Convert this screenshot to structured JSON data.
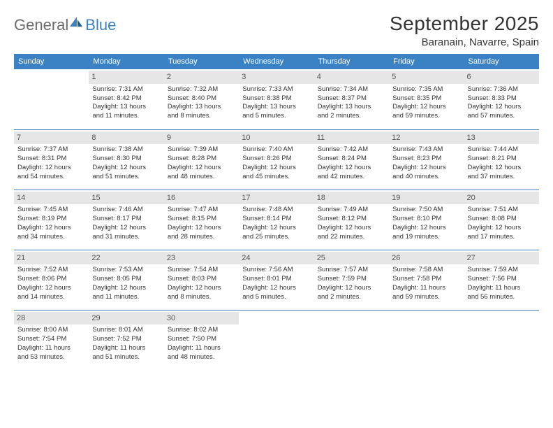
{
  "logo": {
    "word1": "General",
    "word2": "Blue"
  },
  "title": "September 2025",
  "location": "Baranain, Navarre, Spain",
  "day_headers": [
    "Sunday",
    "Monday",
    "Tuesday",
    "Wednesday",
    "Thursday",
    "Friday",
    "Saturday"
  ],
  "colors": {
    "header_bg": "#3b82c4",
    "header_fg": "#ffffff",
    "daynum_bg": "#e6e6e6",
    "border": "#3b82c4",
    "text": "#333333",
    "logo_gray": "#6b6b6b",
    "logo_blue": "#3b82c4"
  },
  "weeks": [
    [
      {
        "n": "",
        "lines": []
      },
      {
        "n": "1",
        "lines": [
          "Sunrise: 7:31 AM",
          "Sunset: 8:42 PM",
          "Daylight: 13 hours",
          "and 11 minutes."
        ]
      },
      {
        "n": "2",
        "lines": [
          "Sunrise: 7:32 AM",
          "Sunset: 8:40 PM",
          "Daylight: 13 hours",
          "and 8 minutes."
        ]
      },
      {
        "n": "3",
        "lines": [
          "Sunrise: 7:33 AM",
          "Sunset: 8:38 PM",
          "Daylight: 13 hours",
          "and 5 minutes."
        ]
      },
      {
        "n": "4",
        "lines": [
          "Sunrise: 7:34 AM",
          "Sunset: 8:37 PM",
          "Daylight: 13 hours",
          "and 2 minutes."
        ]
      },
      {
        "n": "5",
        "lines": [
          "Sunrise: 7:35 AM",
          "Sunset: 8:35 PM",
          "Daylight: 12 hours",
          "and 59 minutes."
        ]
      },
      {
        "n": "6",
        "lines": [
          "Sunrise: 7:36 AM",
          "Sunset: 8:33 PM",
          "Daylight: 12 hours",
          "and 57 minutes."
        ]
      }
    ],
    [
      {
        "n": "7",
        "lines": [
          "Sunrise: 7:37 AM",
          "Sunset: 8:31 PM",
          "Daylight: 12 hours",
          "and 54 minutes."
        ]
      },
      {
        "n": "8",
        "lines": [
          "Sunrise: 7:38 AM",
          "Sunset: 8:30 PM",
          "Daylight: 12 hours",
          "and 51 minutes."
        ]
      },
      {
        "n": "9",
        "lines": [
          "Sunrise: 7:39 AM",
          "Sunset: 8:28 PM",
          "Daylight: 12 hours",
          "and 48 minutes."
        ]
      },
      {
        "n": "10",
        "lines": [
          "Sunrise: 7:40 AM",
          "Sunset: 8:26 PM",
          "Daylight: 12 hours",
          "and 45 minutes."
        ]
      },
      {
        "n": "11",
        "lines": [
          "Sunrise: 7:42 AM",
          "Sunset: 8:24 PM",
          "Daylight: 12 hours",
          "and 42 minutes."
        ]
      },
      {
        "n": "12",
        "lines": [
          "Sunrise: 7:43 AM",
          "Sunset: 8:23 PM",
          "Daylight: 12 hours",
          "and 40 minutes."
        ]
      },
      {
        "n": "13",
        "lines": [
          "Sunrise: 7:44 AM",
          "Sunset: 8:21 PM",
          "Daylight: 12 hours",
          "and 37 minutes."
        ]
      }
    ],
    [
      {
        "n": "14",
        "lines": [
          "Sunrise: 7:45 AM",
          "Sunset: 8:19 PM",
          "Daylight: 12 hours",
          "and 34 minutes."
        ]
      },
      {
        "n": "15",
        "lines": [
          "Sunrise: 7:46 AM",
          "Sunset: 8:17 PM",
          "Daylight: 12 hours",
          "and 31 minutes."
        ]
      },
      {
        "n": "16",
        "lines": [
          "Sunrise: 7:47 AM",
          "Sunset: 8:15 PM",
          "Daylight: 12 hours",
          "and 28 minutes."
        ]
      },
      {
        "n": "17",
        "lines": [
          "Sunrise: 7:48 AM",
          "Sunset: 8:14 PM",
          "Daylight: 12 hours",
          "and 25 minutes."
        ]
      },
      {
        "n": "18",
        "lines": [
          "Sunrise: 7:49 AM",
          "Sunset: 8:12 PM",
          "Daylight: 12 hours",
          "and 22 minutes."
        ]
      },
      {
        "n": "19",
        "lines": [
          "Sunrise: 7:50 AM",
          "Sunset: 8:10 PM",
          "Daylight: 12 hours",
          "and 19 minutes."
        ]
      },
      {
        "n": "20",
        "lines": [
          "Sunrise: 7:51 AM",
          "Sunset: 8:08 PM",
          "Daylight: 12 hours",
          "and 17 minutes."
        ]
      }
    ],
    [
      {
        "n": "21",
        "lines": [
          "Sunrise: 7:52 AM",
          "Sunset: 8:06 PM",
          "Daylight: 12 hours",
          "and 14 minutes."
        ]
      },
      {
        "n": "22",
        "lines": [
          "Sunrise: 7:53 AM",
          "Sunset: 8:05 PM",
          "Daylight: 12 hours",
          "and 11 minutes."
        ]
      },
      {
        "n": "23",
        "lines": [
          "Sunrise: 7:54 AM",
          "Sunset: 8:03 PM",
          "Daylight: 12 hours",
          "and 8 minutes."
        ]
      },
      {
        "n": "24",
        "lines": [
          "Sunrise: 7:56 AM",
          "Sunset: 8:01 PM",
          "Daylight: 12 hours",
          "and 5 minutes."
        ]
      },
      {
        "n": "25",
        "lines": [
          "Sunrise: 7:57 AM",
          "Sunset: 7:59 PM",
          "Daylight: 12 hours",
          "and 2 minutes."
        ]
      },
      {
        "n": "26",
        "lines": [
          "Sunrise: 7:58 AM",
          "Sunset: 7:58 PM",
          "Daylight: 11 hours",
          "and 59 minutes."
        ]
      },
      {
        "n": "27",
        "lines": [
          "Sunrise: 7:59 AM",
          "Sunset: 7:56 PM",
          "Daylight: 11 hours",
          "and 56 minutes."
        ]
      }
    ],
    [
      {
        "n": "28",
        "lines": [
          "Sunrise: 8:00 AM",
          "Sunset: 7:54 PM",
          "Daylight: 11 hours",
          "and 53 minutes."
        ]
      },
      {
        "n": "29",
        "lines": [
          "Sunrise: 8:01 AM",
          "Sunset: 7:52 PM",
          "Daylight: 11 hours",
          "and 51 minutes."
        ]
      },
      {
        "n": "30",
        "lines": [
          "Sunrise: 8:02 AM",
          "Sunset: 7:50 PM",
          "Daylight: 11 hours",
          "and 48 minutes."
        ]
      },
      {
        "n": "",
        "lines": []
      },
      {
        "n": "",
        "lines": []
      },
      {
        "n": "",
        "lines": []
      },
      {
        "n": "",
        "lines": []
      }
    ]
  ]
}
